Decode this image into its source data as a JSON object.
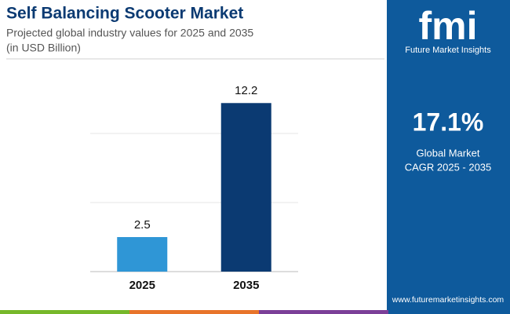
{
  "chart_data": {
    "type": "bar",
    "title": "Self Balancing Scooter Market",
    "subtitle": "Projected global industry values for 2025 and 2035",
    "unit_note": "(in USD Billion)",
    "categories": [
      "2025",
      "2035"
    ],
    "values": [
      2.5,
      12.2
    ],
    "colors": [
      "#2f96d6",
      "#0b3a72"
    ],
    "ylim": [
      0,
      14
    ],
    "yticks": [
      0,
      5,
      10
    ],
    "grid": true
  },
  "sidebar": {
    "logo": "fmi",
    "brand": "Future Market Insights",
    "cagr": "17.1%",
    "cagr_label": [
      "Global Market",
      "CAGR 2025 - 2035"
    ],
    "url": "www.futuremarketinsights.com"
  }
}
